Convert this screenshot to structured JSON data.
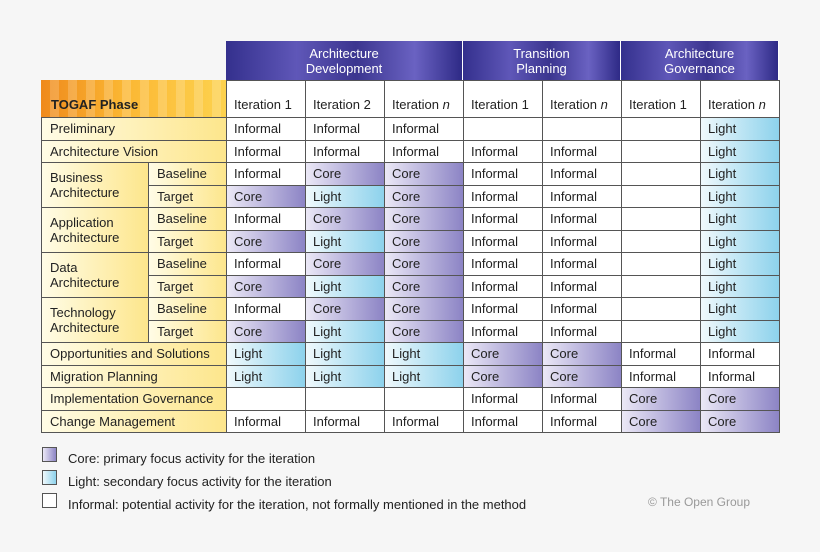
{
  "header": {
    "phase_label": "TOGAF Phase",
    "groups": [
      {
        "lines": [
          "Architecture",
          "Development"
        ],
        "iterations": [
          {
            "word": "Iteration",
            "index": 1
          },
          {
            "word": "Iteration",
            "index": 2
          },
          {
            "word": "Iteration",
            "index": "n",
            "italic": true
          }
        ]
      },
      {
        "lines": [
          "Transition",
          "Planning"
        ],
        "iterations": [
          {
            "word": "Iteration",
            "index": 1
          },
          {
            "word": "Iteration",
            "index": "n",
            "italic": true
          }
        ]
      },
      {
        "lines": [
          "Architecture",
          "Governance"
        ],
        "iterations": [
          {
            "word": "Iteration",
            "index": 1
          },
          {
            "word": "Iteration",
            "index": "n",
            "italic": true
          }
        ]
      }
    ]
  },
  "rows": [
    {
      "phase": "Preliminary",
      "cells": [
        "Informal",
        "Informal",
        "Informal",
        null,
        null,
        null,
        "Light"
      ]
    },
    {
      "phase": "Architecture Vision",
      "cells": [
        "Informal",
        "Informal",
        "Informal",
        "Informal",
        "Informal",
        null,
        "Light"
      ]
    },
    {
      "phase": "Business Architecture",
      "parts": [
        {
          "label": "Baseline",
          "cells": [
            "Informal",
            "Core",
            "Core",
            "Informal",
            "Informal",
            null,
            "Light"
          ]
        },
        {
          "label": "Target",
          "cells": [
            "Core",
            "Light",
            "Core",
            "Informal",
            "Informal",
            null,
            "Light"
          ]
        }
      ]
    },
    {
      "phase": "Application Architecture",
      "parts": [
        {
          "label": "Baseline",
          "cells": [
            "Informal",
            "Core",
            "Core",
            "Informal",
            "Informal",
            null,
            "Light"
          ]
        },
        {
          "label": "Target",
          "cells": [
            "Core",
            "Light",
            "Core",
            "Informal",
            "Informal",
            null,
            "Light"
          ]
        }
      ]
    },
    {
      "phase": "Data Architecture",
      "parts": [
        {
          "label": "Baseline",
          "cells": [
            "Informal",
            "Core",
            "Core",
            "Informal",
            "Informal",
            null,
            "Light"
          ]
        },
        {
          "label": "Target",
          "cells": [
            "Core",
            "Light",
            "Core",
            "Informal",
            "Informal",
            null,
            "Light"
          ]
        }
      ]
    },
    {
      "phase": "Technology Architecture",
      "parts": [
        {
          "label": "Baseline",
          "cells": [
            "Informal",
            "Core",
            "Core",
            "Informal",
            "Informal",
            null,
            "Light"
          ]
        },
        {
          "label": "Target",
          "cells": [
            "Core",
            "Light",
            "Core",
            "Informal",
            "Informal",
            null,
            "Light"
          ]
        }
      ]
    },
    {
      "phase": "Opportunities and Solutions",
      "cells": [
        "Light",
        "Light",
        "Light",
        "Core",
        "Core",
        "Informal",
        "Informal"
      ]
    },
    {
      "phase": "Migration Planning",
      "cells": [
        "Light",
        "Light",
        "Light",
        "Core",
        "Core",
        "Informal",
        "Informal"
      ]
    },
    {
      "phase": "Implementation Governance",
      "cells": [
        null,
        null,
        null,
        "Informal",
        "Informal",
        "Core",
        "Core"
      ]
    },
    {
      "phase": "Change Management",
      "cells": [
        "Informal",
        "Informal",
        "Informal",
        "Informal",
        "Informal",
        "Core",
        "Core"
      ]
    }
  ],
  "legend": [
    {
      "swatch": "Core",
      "text": "Core: primary focus activity for the iteration"
    },
    {
      "swatch": "Light",
      "text": "Light: secondary focus activity for the iteration"
    },
    {
      "swatch": "Informal",
      "text": "Informal: potential activity for the iteration, not formally mentioned in the method"
    }
  ],
  "footer": {
    "copyright": "© The Open Group"
  }
}
